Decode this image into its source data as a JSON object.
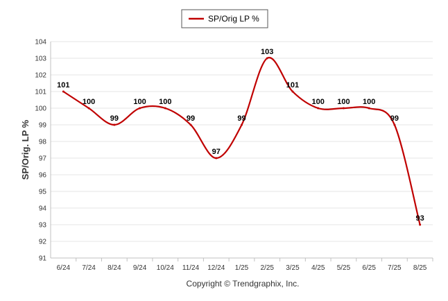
{
  "chart_data": {
    "type": "line",
    "categories": [
      "6/24",
      "7/24",
      "8/24",
      "9/24",
      "10/24",
      "11/24",
      "12/24",
      "1/25",
      "2/25",
      "3/25",
      "4/25",
      "5/25",
      "6/25",
      "7/25",
      "8/25"
    ],
    "series": [
      {
        "name": "SP/Orig LP %",
        "values": [
          101,
          100,
          99,
          100,
          100,
          99,
          97,
          99,
          103,
          101,
          100,
          100,
          100,
          99,
          93
        ],
        "color": "#c00000"
      }
    ],
    "ylabel": "SP/Orig. LP %",
    "xlabel": "",
    "ylim": [
      91,
      104
    ],
    "yticks": [
      91,
      92,
      93,
      94,
      95,
      96,
      97,
      98,
      99,
      100,
      101,
      102,
      103,
      104
    ],
    "grid": true,
    "legend_position": "top-center",
    "footer": "Copyright © Trendgraphix, Inc."
  }
}
